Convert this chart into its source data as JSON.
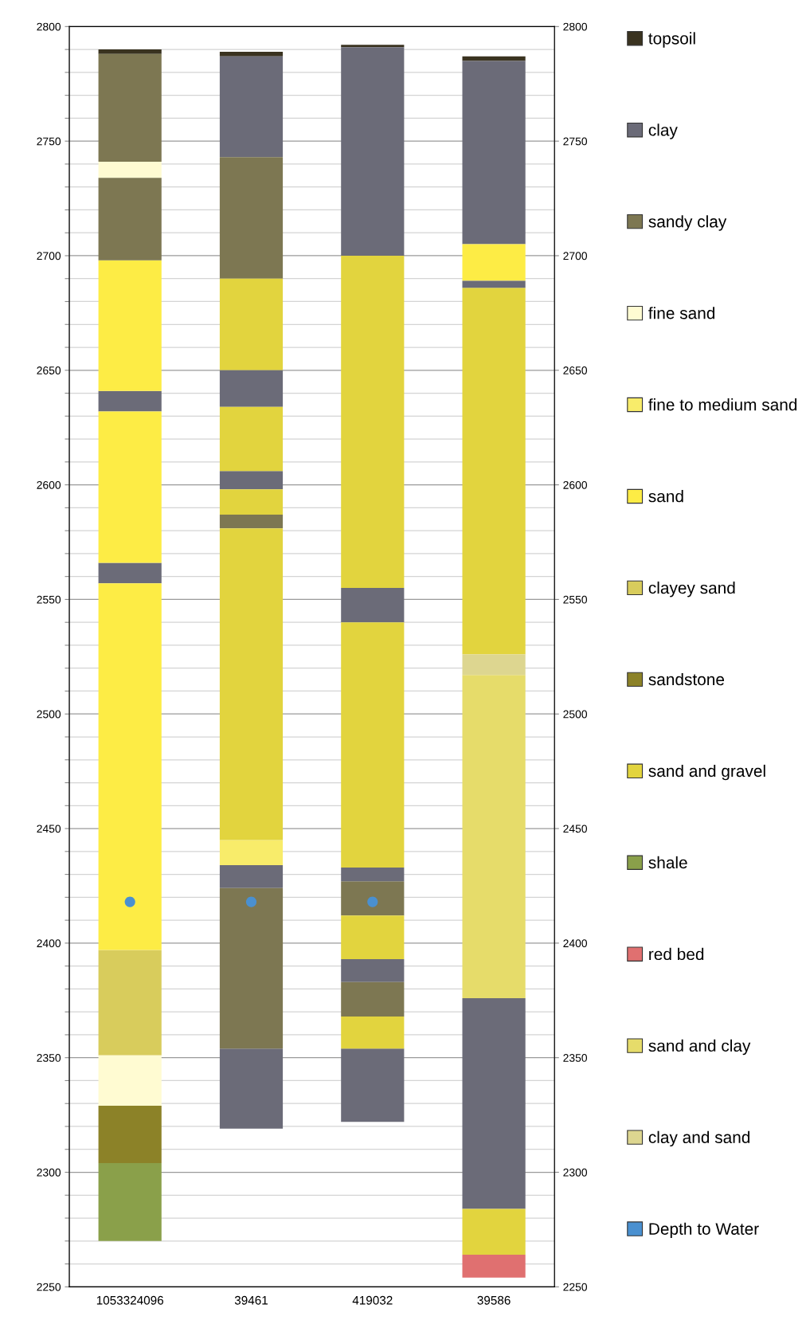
{
  "chart_data": {
    "type": "bar",
    "categories": [
      "1053324096",
      "39461",
      "419032",
      "39586"
    ],
    "ylim": [
      2250,
      2800
    ],
    "y2lim": [
      2250,
      2800
    ],
    "yticks": [
      2250,
      {
        "value": 2260,
        "label": null
      },
      {
        "value": 2270,
        "label": null
      },
      {
        "value": 2280,
        "label": null
      },
      {
        "value": 2290,
        "label": null
      },
      2300,
      {
        "value": 2310,
        "label": null
      },
      {
        "value": 2320,
        "label": null
      },
      {
        "value": 2330,
        "label": null
      },
      {
        "value": 2340,
        "label": null
      },
      2350,
      {
        "value": 2360,
        "label": null
      },
      {
        "value": 2370,
        "label": null
      },
      {
        "value": 2380,
        "label": null
      },
      {
        "value": 2390,
        "label": null
      },
      2400,
      {
        "value": 2410,
        "label": null
      },
      {
        "value": 2420,
        "label": null
      },
      {
        "value": 2430,
        "label": null
      },
      {
        "value": 2440,
        "label": null
      },
      2450,
      {
        "value": 2460,
        "label": null
      },
      {
        "value": 2470,
        "label": null
      },
      {
        "value": 2480,
        "label": null
      },
      {
        "value": 2490,
        "label": null
      },
      2500,
      {
        "value": 2510,
        "label": null
      },
      {
        "value": 2520,
        "label": null
      },
      {
        "value": 2530,
        "label": null
      },
      {
        "value": 2540,
        "label": null
      },
      2550,
      {
        "value": 2560,
        "label": null
      },
      {
        "value": 2570,
        "label": null
      },
      {
        "value": 2580,
        "label": null
      },
      {
        "value": 2590,
        "label": null
      },
      2600,
      {
        "value": 2610,
        "label": null
      },
      {
        "value": 2620,
        "label": null
      },
      {
        "value": 2630,
        "label": null
      },
      {
        "value": 2640,
        "label": null
      },
      2650,
      {
        "value": 2660,
        "label": null
      },
      {
        "value": 2670,
        "label": null
      },
      {
        "value": 2680,
        "label": null
      },
      {
        "value": 2690,
        "label": null
      },
      2700,
      {
        "value": 2710,
        "label": null
      },
      {
        "value": 2720,
        "label": null
      },
      {
        "value": 2730,
        "label": null
      },
      {
        "value": 2740,
        "label": null
      },
      2750,
      {
        "value": 2760,
        "label": null
      },
      {
        "value": 2770,
        "label": null
      },
      {
        "value": 2780,
        "label": null
      },
      {
        "value": 2790,
        "label": null
      },
      2800
    ],
    "y2ticks": [
      2250,
      2300,
      2350,
      2400,
      2450,
      2500,
      2550,
      2600,
      2650,
      2700,
      2750,
      2800
    ],
    "grid": true,
    "legend": "right",
    "series": [
      {
        "name": "topsoil",
        "color": "#3a3320",
        "values": [
          2,
          2,
          1,
          2
        ],
        "base": [
          2788,
          2787,
          2791,
          2785
        ]
      },
      {
        "name": "clay",
        "color": "#6b6b78",
        "values": [
          9,
          44,
          91,
          80
        ],
        "base": [
          2632,
          2743,
          2700,
          2705
        ]
      },
      {
        "name": "sandy clay",
        "color": "#7d7752",
        "values": [
          47,
          53,
          15,
          null
        ],
        "base": [
          2741,
          2690,
          2412,
          null
        ]
      },
      {
        "name": "fine sand",
        "color": "#fffbd2",
        "values": [
          7,
          null,
          null,
          null
        ],
        "base": [
          2734,
          null,
          null,
          null
        ]
      },
      {
        "name": "fine to medium sand",
        "color": "#f8ec6a",
        "values": [
          null,
          11,
          null,
          null
        ],
        "base": [
          null,
          2434,
          null,
          null
        ]
      },
      {
        "name": "sand",
        "color": "#fdec45",
        "values": [
          57,
          null,
          null,
          16
        ],
        "base": [
          2641,
          null,
          null,
          2689
        ]
      },
      {
        "name": "clayey sand",
        "color": "#d8cc5c",
        "values": [
          46,
          null,
          null,
          null
        ],
        "base": [
          2351,
          null,
          null,
          null
        ]
      },
      {
        "name": "sandstone",
        "color": "#8c8228",
        "values": [
          25,
          null,
          null,
          null
        ],
        "base": [
          2304,
          null,
          null,
          null
        ]
      },
      {
        "name": "sand and gravel",
        "color": "#e2d43e",
        "values": [
          null,
          40,
          145,
          160
        ],
        "base": [
          null,
          2650,
          2555,
          2526
        ]
      },
      {
        "name": "shale",
        "color": "#8aa04a",
        "values": [
          34,
          null,
          null,
          null
        ],
        "base": [
          2270,
          null,
          null,
          null
        ]
      },
      {
        "name": "red bed",
        "color": "#e07070",
        "values": [
          null,
          null,
          null,
          10
        ],
        "base": [
          null,
          null,
          null,
          2254
        ]
      },
      {
        "name": "sand and clay",
        "color": "#e6dc6a",
        "values": [
          null,
          null,
          null,
          141
        ],
        "base": [
          null,
          null,
          null,
          2376
        ]
      },
      {
        "name": "clay and sand",
        "color": "#ddd690",
        "values": [
          null,
          null,
          null,
          9
        ],
        "base": [
          null,
          null,
          null,
          2517
        ]
      },
      {
        "name": "Depth to Water",
        "type": "scatter",
        "color": "#4a90d0",
        "values": [
          2418,
          2418,
          2418,
          null
        ]
      },
      {
        "color": "#6b6b78",
        "values": [
          9,
          16,
          15,
          3
        ],
        "base": [
          2557,
          2634,
          2540,
          2686
        ]
      },
      {
        "color": "#6b6b78",
        "values": [
          null,
          8,
          6,
          92
        ],
        "base": [
          null,
          2598,
          2427,
          2284
        ]
      },
      {
        "color": "#6b6b78",
        "values": [
          null,
          10,
          10,
          null
        ],
        "base": [
          null,
          2424,
          2383,
          null
        ]
      },
      {
        "color": "#6b6b78",
        "values": [
          null,
          35,
          32,
          null
        ],
        "base": [
          null,
          2319,
          2322,
          null
        ]
      },
      {
        "color": "#7d7752",
        "values": [
          36,
          6,
          15,
          null
        ],
        "base": [
          2698,
          2581,
          2368,
          null
        ]
      },
      {
        "color": "#7d7752",
        "values": [
          null,
          70,
          null,
          null
        ],
        "base": [
          null,
          2354,
          null,
          null
        ]
      },
      {
        "color": "#fffbd2",
        "values": [
          22,
          null,
          null,
          null
        ],
        "base": [
          2329,
          null,
          null,
          null
        ]
      },
      {
        "color": "#fdec45",
        "values": [
          66,
          null,
          null,
          null
        ],
        "base": [
          2566,
          null,
          null,
          null
        ]
      },
      {
        "color": "#fdec45",
        "values": [
          160,
          null,
          null,
          null
        ],
        "base": [
          2397,
          null,
          null,
          null
        ]
      },
      {
        "color": "#e2d43e",
        "values": [
          null,
          28,
          107,
          20
        ],
        "base": [
          null,
          2606,
          2433,
          2264
        ]
      },
      {
        "color": "#e2d43e",
        "values": [
          null,
          11,
          19,
          null
        ],
        "base": [
          null,
          2587,
          2393,
          null
        ]
      },
      {
        "color": "#e2d43e",
        "values": [
          null,
          136,
          14,
          null
        ],
        "base": [
          null,
          2445,
          2354,
          null
        ]
      }
    ]
  }
}
